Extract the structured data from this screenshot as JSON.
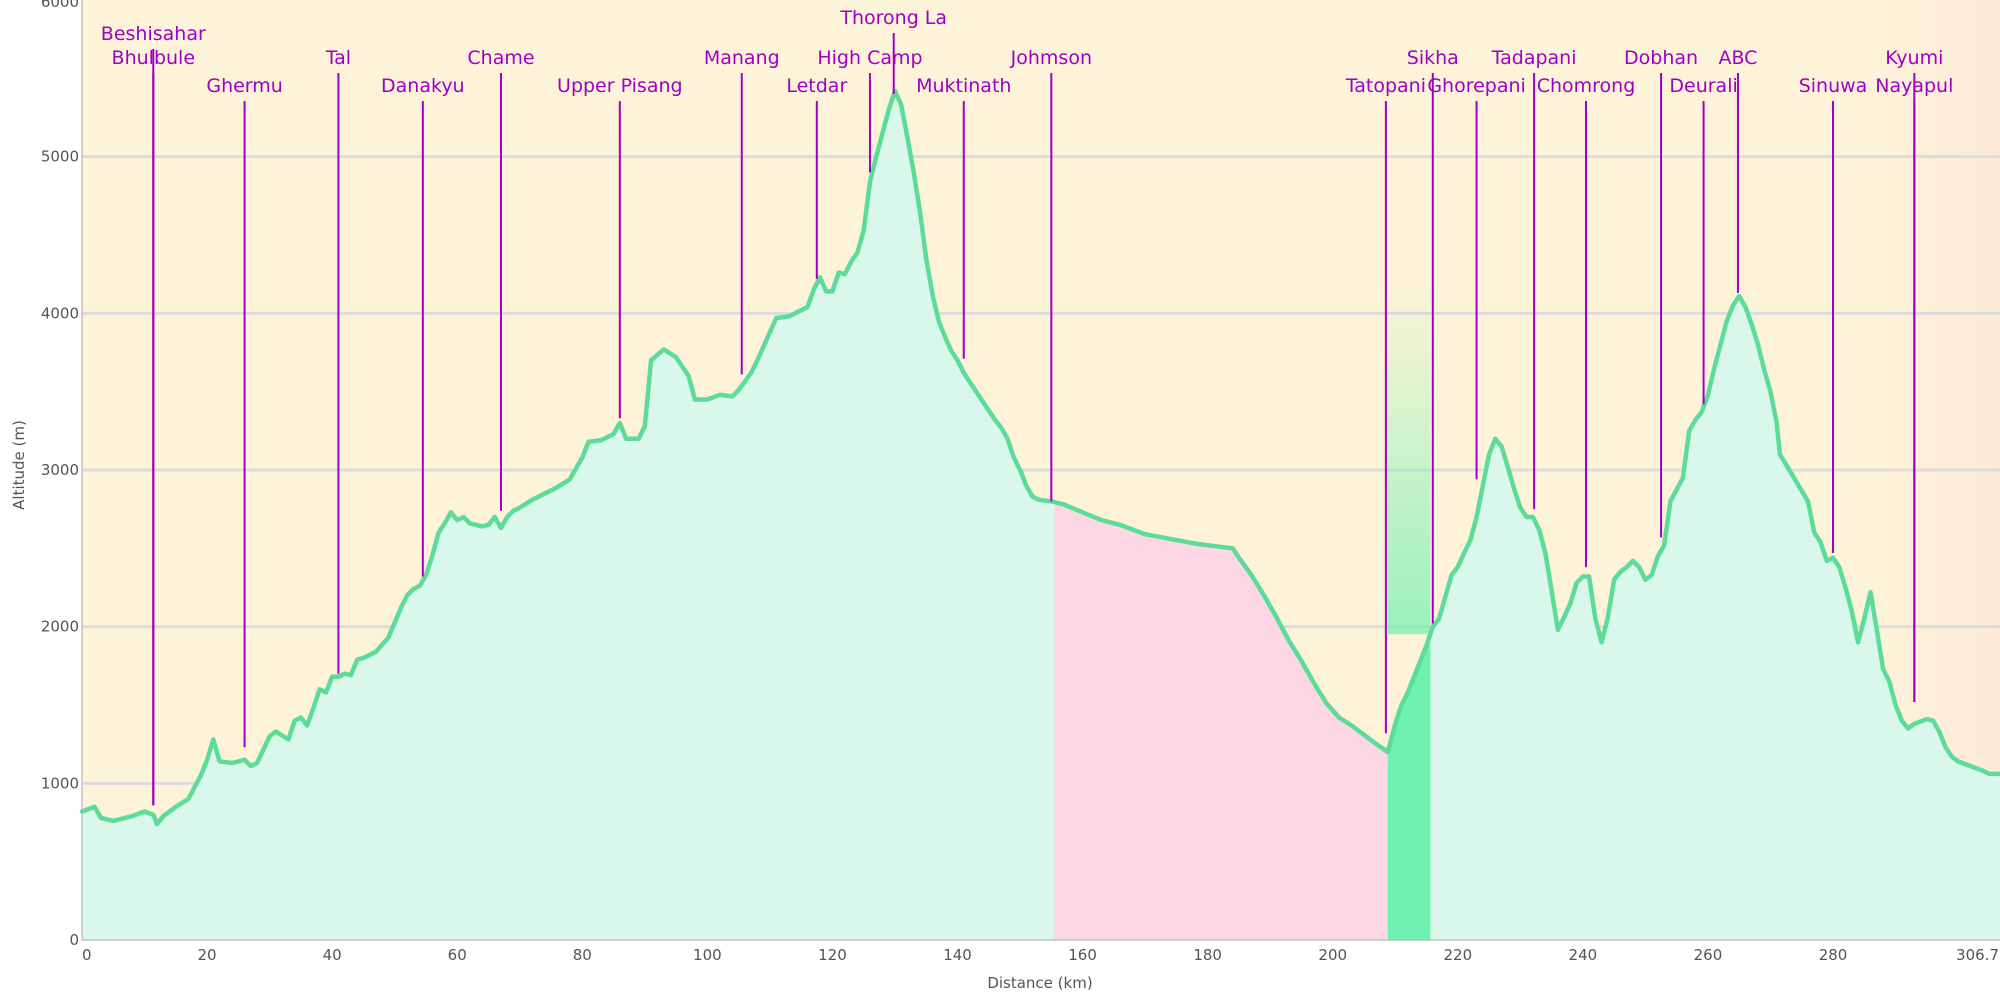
{
  "chart_data": {
    "type": "area",
    "title": "",
    "xlabel": "Distance   (km)",
    "ylabel": "Altitude (m)",
    "xlim": [
      0,
      306.7
    ],
    "ylim": [
      0,
      6000
    ],
    "x_ticks": [
      {
        "value": 0,
        "label": "0"
      },
      {
        "value": 20,
        "label": "20"
      },
      {
        "value": 40,
        "label": "40"
      },
      {
        "value": 60,
        "label": "60"
      },
      {
        "value": 80,
        "label": "80"
      },
      {
        "value": 100,
        "label": "100"
      },
      {
        "value": 120,
        "label": "120"
      },
      {
        "value": 140,
        "label": "140"
      },
      {
        "value": 160,
        "label": "160"
      },
      {
        "value": 180,
        "label": "180"
      },
      {
        "value": 200,
        "label": "200"
      },
      {
        "value": 220,
        "label": "220"
      },
      {
        "value": 240,
        "label": "240"
      },
      {
        "value": 260,
        "label": "260"
      },
      {
        "value": 280,
        "label": "280"
      },
      {
        "value": 306.7,
        "label": "306.7"
      }
    ],
    "y_ticks": [
      {
        "value": 0,
        "label": "0"
      },
      {
        "value": 1000,
        "label": "1000"
      },
      {
        "value": 2000,
        "label": "2000"
      },
      {
        "value": 3000,
        "label": "3000"
      },
      {
        "value": 4000,
        "label": "4000"
      },
      {
        "value": 5000,
        "label": "5000"
      },
      {
        "value": 6000,
        "label": "6000"
      }
    ],
    "grid": true,
    "colors": {
      "background": "#fdf3d9",
      "background_end": "#fde9d9",
      "fill": "#d9f7ea",
      "line": "#5cdb9a",
      "pink_section": "#fdd7e4",
      "green_section": "#6df2b0",
      "marker": "#a000c0",
      "grid": "#dcdcdc"
    },
    "sections": [
      {
        "x0": 155.5,
        "x1": 208.8,
        "color": "#fdd7e4"
      },
      {
        "x0": 208.8,
        "x1": 215.6,
        "color": "#6df2b0"
      }
    ],
    "series": [
      {
        "values": [
          [
            0,
            820
          ],
          [
            2,
            850
          ],
          [
            3,
            780
          ],
          [
            5,
            760
          ],
          [
            8,
            790
          ],
          [
            10,
            820
          ],
          [
            11.4,
            800
          ],
          [
            12,
            740
          ],
          [
            13,
            790
          ],
          [
            15,
            850
          ],
          [
            17,
            900
          ],
          [
            19,
            1050
          ],
          [
            20,
            1150
          ],
          [
            21,
            1280
          ],
          [
            22,
            1140
          ],
          [
            24,
            1130
          ],
          [
            26,
            1150
          ],
          [
            27,
            1110
          ],
          [
            28,
            1130
          ],
          [
            30,
            1300
          ],
          [
            31,
            1330
          ],
          [
            33,
            1280
          ],
          [
            34,
            1400
          ],
          [
            35,
            1420
          ],
          [
            36,
            1370
          ],
          [
            37,
            1480
          ],
          [
            38,
            1600
          ],
          [
            39,
            1580
          ],
          [
            40,
            1680
          ],
          [
            41,
            1680
          ],
          [
            42,
            1700
          ],
          [
            43,
            1690
          ],
          [
            44,
            1790
          ],
          [
            45,
            1800
          ],
          [
            47,
            1840
          ],
          [
            49,
            1930
          ],
          [
            51,
            2120
          ],
          [
            52,
            2200
          ],
          [
            53,
            2240
          ],
          [
            54,
            2260
          ],
          [
            55,
            2330
          ],
          [
            56,
            2450
          ],
          [
            57,
            2600
          ],
          [
            58,
            2660
          ],
          [
            59,
            2730
          ],
          [
            60,
            2680
          ],
          [
            61,
            2700
          ],
          [
            62,
            2660
          ],
          [
            64,
            2640
          ],
          [
            65,
            2650
          ],
          [
            66,
            2700
          ],
          [
            67,
            2630
          ],
          [
            68,
            2700
          ],
          [
            69,
            2740
          ],
          [
            70,
            2760
          ],
          [
            72,
            2810
          ],
          [
            74,
            2850
          ],
          [
            76,
            2890
          ],
          [
            78,
            2940
          ],
          [
            79,
            3010
          ],
          [
            80,
            3080
          ],
          [
            81,
            3180
          ],
          [
            83,
            3190
          ],
          [
            85,
            3230
          ],
          [
            86,
            3300
          ],
          [
            87,
            3200
          ],
          [
            89,
            3200
          ],
          [
            90,
            3280
          ],
          [
            91,
            3700
          ],
          [
            93,
            3770
          ],
          [
            95,
            3720
          ],
          [
            97,
            3600
          ],
          [
            98,
            3450
          ],
          [
            100,
            3450
          ],
          [
            102,
            3480
          ],
          [
            104,
            3470
          ],
          [
            105,
            3510
          ],
          [
            107,
            3620
          ],
          [
            108,
            3700
          ],
          [
            110,
            3880
          ],
          [
            111,
            3970
          ],
          [
            113,
            3980
          ],
          [
            115,
            4020
          ],
          [
            116,
            4040
          ],
          [
            117,
            4150
          ],
          [
            118,
            4230
          ],
          [
            119,
            4140
          ],
          [
            120,
            4140
          ],
          [
            121,
            4260
          ],
          [
            122,
            4250
          ],
          [
            123,
            4330
          ],
          [
            124,
            4390
          ],
          [
            125,
            4530
          ],
          [
            126,
            4840
          ],
          [
            127,
            5000
          ],
          [
            128,
            5150
          ],
          [
            129,
            5300
          ],
          [
            130,
            5420
          ],
          [
            131,
            5330
          ],
          [
            132,
            5120
          ],
          [
            133,
            4900
          ],
          [
            134,
            4650
          ],
          [
            135,
            4350
          ],
          [
            136,
            4120
          ],
          [
            137,
            3950
          ],
          [
            138,
            3850
          ],
          [
            139,
            3760
          ],
          [
            140,
            3700
          ],
          [
            141,
            3620
          ],
          [
            142,
            3560
          ],
          [
            143,
            3500
          ],
          [
            144,
            3440
          ],
          [
            145,
            3380
          ],
          [
            146,
            3320
          ],
          [
            147,
            3270
          ],
          [
            148,
            3200
          ],
          [
            149,
            3080
          ],
          [
            150,
            3000
          ],
          [
            151,
            2900
          ],
          [
            152,
            2830
          ],
          [
            153,
            2810
          ],
          [
            155,
            2800
          ],
          [
            157,
            2780
          ],
          [
            160,
            2730
          ],
          [
            163,
            2680
          ],
          [
            166,
            2650
          ],
          [
            170,
            2590
          ],
          [
            174,
            2560
          ],
          [
            178,
            2530
          ],
          [
            182,
            2510
          ],
          [
            184,
            2500
          ],
          [
            185,
            2440
          ],
          [
            187,
            2330
          ],
          [
            189,
            2200
          ],
          [
            191,
            2060
          ],
          [
            193,
            1910
          ],
          [
            195,
            1780
          ],
          [
            197,
            1640
          ],
          [
            199,
            1510
          ],
          [
            201,
            1420
          ],
          [
            203,
            1370
          ],
          [
            205,
            1310
          ],
          [
            207,
            1250
          ],
          [
            208.8,
            1200
          ],
          [
            210,
            1380
          ],
          [
            211,
            1500
          ],
          [
            212,
            1580
          ],
          [
            213,
            1680
          ],
          [
            214,
            1780
          ],
          [
            215,
            1880
          ],
          [
            216,
            2000
          ],
          [
            217,
            2050
          ],
          [
            218,
            2190
          ],
          [
            219,
            2330
          ],
          [
            220,
            2380
          ],
          [
            221,
            2470
          ],
          [
            222,
            2550
          ],
          [
            223,
            2700
          ],
          [
            224,
            2900
          ],
          [
            225,
            3100
          ],
          [
            226,
            3200
          ],
          [
            227,
            3150
          ],
          [
            228,
            3020
          ],
          [
            229,
            2880
          ],
          [
            230,
            2760
          ],
          [
            231,
            2700
          ],
          [
            232,
            2700
          ],
          [
            233,
            2620
          ],
          [
            234,
            2470
          ],
          [
            235,
            2230
          ],
          [
            236,
            1980
          ],
          [
            237,
            2060
          ],
          [
            238,
            2150
          ],
          [
            239,
            2280
          ],
          [
            240,
            2320
          ],
          [
            241,
            2320
          ],
          [
            242,
            2050
          ],
          [
            243,
            1900
          ],
          [
            244,
            2060
          ],
          [
            245,
            2300
          ],
          [
            246,
            2350
          ],
          [
            247,
            2380
          ],
          [
            248,
            2420
          ],
          [
            249,
            2380
          ],
          [
            250,
            2300
          ],
          [
            251,
            2330
          ],
          [
            252,
            2450
          ],
          [
            253,
            2520
          ],
          [
            254,
            2800
          ],
          [
            256,
            2950
          ],
          [
            257,
            3250
          ],
          [
            258,
            3320
          ],
          [
            259,
            3370
          ],
          [
            260,
            3480
          ],
          [
            261,
            3650
          ],
          [
            262,
            3800
          ],
          [
            263,
            3950
          ],
          [
            264,
            4050
          ],
          [
            265,
            4110
          ],
          [
            266,
            4040
          ],
          [
            267,
            3930
          ],
          [
            268,
            3800
          ],
          [
            269,
            3640
          ],
          [
            270,
            3500
          ],
          [
            271,
            3300
          ],
          [
            271.5,
            3100
          ],
          [
            276,
            2800
          ],
          [
            277,
            2600
          ],
          [
            278,
            2540
          ],
          [
            279,
            2420
          ],
          [
            280,
            2440
          ],
          [
            281,
            2380
          ],
          [
            282,
            2250
          ],
          [
            283,
            2100
          ],
          [
            284,
            1900
          ],
          [
            285,
            2050
          ],
          [
            286,
            2220
          ],
          [
            287,
            1980
          ],
          [
            288,
            1730
          ],
          [
            289,
            1650
          ],
          [
            290,
            1500
          ],
          [
            291,
            1400
          ],
          [
            292,
            1350
          ],
          [
            293,
            1380
          ],
          [
            295,
            1410
          ],
          [
            296,
            1400
          ],
          [
            297,
            1330
          ],
          [
            298,
            1230
          ],
          [
            299,
            1170
          ],
          [
            300,
            1140
          ],
          [
            302,
            1110
          ],
          [
            304,
            1080
          ],
          [
            305,
            1060
          ],
          [
            306.7,
            1060
          ]
        ]
      }
    ],
    "annotations": [
      {
        "x": 11.4,
        "y": 860,
        "label": "Beshisahar",
        "row": 0
      },
      {
        "x": 11.4,
        "y": 860,
        "label": "Bhulbule",
        "row": 1
      },
      {
        "x": 26,
        "y": 1230,
        "label": "Ghermu",
        "row": 2
      },
      {
        "x": 41,
        "y": 1700,
        "label": "Tal",
        "row": 1
      },
      {
        "x": 54.5,
        "y": 2320,
        "label": "Danakyu",
        "row": 2
      },
      {
        "x": 67,
        "y": 2740,
        "label": "Chame",
        "row": 1
      },
      {
        "x": 86,
        "y": 3330,
        "label": "Upper Pisang",
        "row": 2
      },
      {
        "x": 105.5,
        "y": 3610,
        "label": "Manang",
        "row": 1
      },
      {
        "x": 117.5,
        "y": 4220,
        "label": "Letdar",
        "row": 2
      },
      {
        "x": 126,
        "y": 4900,
        "label": "High Camp",
        "row": 1
      },
      {
        "x": 129.8,
        "y": 5400,
        "label": "Thorong La",
        "row": -1
      },
      {
        "x": 141,
        "y": 3710,
        "label": "Muktinath",
        "row": 2
      },
      {
        "x": 155,
        "y": 2800,
        "label": "Johmson",
        "row": 1
      },
      {
        "x": 208.5,
        "y": 1320,
        "label": "Tatopani",
        "row": 2
      },
      {
        "x": 216,
        "y": 2020,
        "label": "Sikha",
        "row": 1
      },
      {
        "x": 223,
        "y": 2940,
        "label": "Ghorepani",
        "row": 2
      },
      {
        "x": 232.2,
        "y": 2750,
        "label": "Tadapani",
        "row": 1
      },
      {
        "x": 240.5,
        "y": 2380,
        "label": "Chomrong",
        "row": 2
      },
      {
        "x": 252.5,
        "y": 2570,
        "label": "Dobhan",
        "row": 1
      },
      {
        "x": 259.3,
        "y": 3420,
        "label": "Deurali",
        "row": 2
      },
      {
        "x": 264.8,
        "y": 4130,
        "label": "ABC",
        "row": 1
      },
      {
        "x": 280,
        "y": 2470,
        "label": "Sinuwa",
        "row": 2
      },
      {
        "x": 293,
        "y": 1520,
        "label": "Kyumi",
        "row": 1
      },
      {
        "x": 293,
        "y": 1520,
        "label": "Nayapul",
        "row": 2
      }
    ]
  }
}
